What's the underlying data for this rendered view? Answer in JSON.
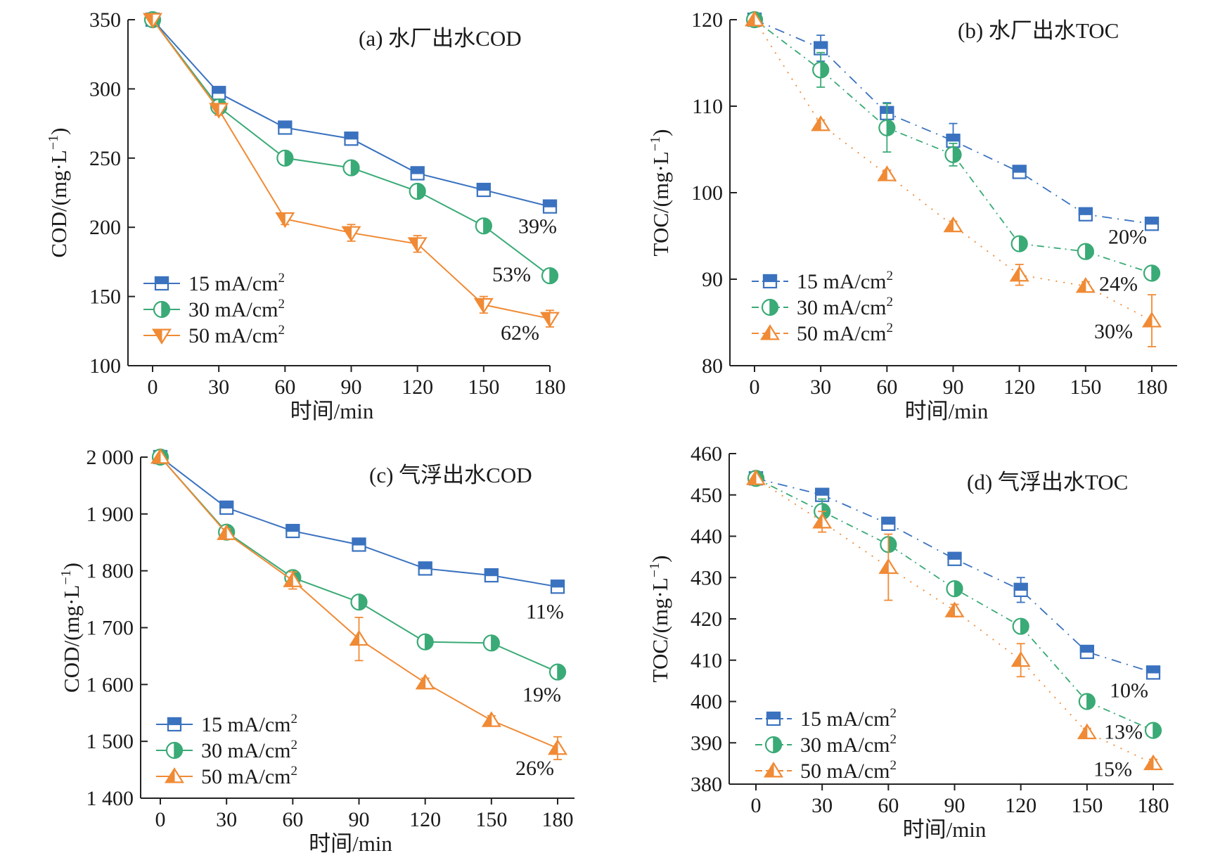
{
  "colors": {
    "15": "#3a72bf",
    "30": "#3aaa76",
    "50": "#f08a35"
  },
  "chart_data": [
    {
      "panel": "a",
      "type": "line",
      "title": "(a)  水厂出水COD",
      "xlabel": "时间/min",
      "ylabel": "COD/(mg·L-1)",
      "ylabel_main": "COD/(mg·L",
      "ylabel_sup": "−1",
      "ylabel_tail": ")",
      "x": [
        0,
        30,
        60,
        90,
        120,
        150,
        180
      ],
      "xticks": [
        "0",
        "30",
        "60",
        "90",
        "120",
        "150",
        "180"
      ],
      "ylim": [
        100,
        350
      ],
      "yticks": [
        100,
        150,
        200,
        250,
        300,
        350
      ],
      "ytick_labels": [
        "100",
        "150",
        "200",
        "250",
        "300",
        "350"
      ],
      "line_style": "solid",
      "series": [
        {
          "name": "15 mA/cm",
          "sup": "2",
          "key": "15",
          "marker": "square",
          "values": [
            350,
            297,
            272,
            264,
            239,
            227,
            215
          ],
          "errors": [
            0,
            4,
            4,
            3,
            3,
            3,
            3
          ]
        },
        {
          "name": "30 mA/cm",
          "sup": "2",
          "key": "30",
          "marker": "circle",
          "values": [
            350,
            287,
            250,
            243,
            226,
            201,
            165
          ],
          "errors": [
            0,
            3,
            3,
            3,
            3,
            3,
            3
          ]
        },
        {
          "name": "50 mA/cm",
          "sup": "2",
          "key": "50",
          "marker": "tri-down",
          "values": [
            350,
            285,
            206,
            196,
            188,
            144,
            134
          ],
          "errors": [
            0,
            4,
            4,
            6,
            6,
            6,
            6
          ]
        }
      ],
      "annotations": [
        {
          "text": "39%",
          "x": 180,
          "y": 215,
          "key": "15"
        },
        {
          "text": "53%",
          "x": 180,
          "y": 165,
          "key": "30"
        },
        {
          "text": "62%",
          "x": 180,
          "y": 134,
          "key": "50"
        }
      ],
      "legend": "bottom-left"
    },
    {
      "panel": "b",
      "type": "line",
      "title": "(b)  水厂出水TOC",
      "xlabel": "时间/min",
      "ylabel": "TOC/(mg·L-1)",
      "ylabel_main": "TOC/(mg·L",
      "ylabel_sup": "−1",
      "ylabel_tail": ")",
      "x": [
        0,
        30,
        60,
        90,
        120,
        150,
        180
      ],
      "xticks": [
        "0",
        "30",
        "60",
        "90",
        "120",
        "150",
        "180"
      ],
      "ylim": [
        80,
        120
      ],
      "yticks": [
        80,
        90,
        100,
        110,
        120
      ],
      "ytick_labels": [
        "80",
        "90",
        "100",
        "110",
        "120"
      ],
      "line_style": "dashdot",
      "series": [
        {
          "name": "15 mA/cm",
          "sup": "2",
          "key": "15",
          "marker": "square",
          "values": [
            120,
            116.7,
            109.2,
            106,
            102.4,
            97.5,
            96.4
          ],
          "errors": [
            0,
            1.5,
            1.2,
            2,
            0.5,
            0.5,
            0.5
          ]
        },
        {
          "name": "30 mA/cm",
          "sup": "2",
          "key": "30",
          "marker": "circle",
          "values": [
            120,
            114.2,
            107.5,
            104.4,
            94.1,
            93.2,
            90.7
          ],
          "errors": [
            0,
            2,
            2.8,
            1.3,
            0.5,
            0.5,
            0.5
          ]
        },
        {
          "name": "50 mA/cm",
          "sup": "2",
          "key": "50",
          "marker": "tri-up",
          "values": [
            120,
            107.9,
            102.1,
            96.2,
            90.5,
            89.2,
            85.2
          ],
          "errors": [
            0,
            0.5,
            0.5,
            0.5,
            1.2,
            0.5,
            3
          ]
        }
      ],
      "annotations": [
        {
          "text": "20%",
          "x": 180,
          "y": 96.4,
          "key": "15"
        },
        {
          "text": "24%",
          "x": 180,
          "y": 90.7,
          "key": "30"
        },
        {
          "text": "30%",
          "x": 180,
          "y": 85.2,
          "key": "50"
        }
      ],
      "legend": "bottom-left"
    },
    {
      "panel": "c",
      "type": "line",
      "title": "(c)  气浮出水COD",
      "xlabel": "时间/min",
      "ylabel": "COD/(mg·L-1)",
      "ylabel_main": "COD/(mg·L",
      "ylabel_sup": "−1",
      "ylabel_tail": ")",
      "x": [
        0,
        30,
        60,
        90,
        120,
        150,
        180
      ],
      "xticks": [
        "0",
        "30",
        "60",
        "90",
        "120",
        "150",
        "180"
      ],
      "ylim": [
        1400,
        2000
      ],
      "yticks": [
        1400,
        1500,
        1600,
        1700,
        1800,
        1900,
        2000
      ],
      "ytick_labels": [
        "1 400",
        "1 500",
        "1 600",
        "1 700",
        "1 800",
        "1 900",
        "2 000"
      ],
      "line_style": "solid",
      "series": [
        {
          "name": "15 mA/cm",
          "sup": "2",
          "key": "15",
          "marker": "square",
          "values": [
            2000,
            1911,
            1870,
            1846,
            1804,
            1792,
            1772
          ],
          "errors": [
            0,
            10,
            8,
            8,
            6,
            6,
            6
          ]
        },
        {
          "name": "30 mA/cm",
          "sup": "2",
          "key": "30",
          "marker": "circle",
          "values": [
            2000,
            1868,
            1788,
            1745,
            1675,
            1673,
            1622
          ],
          "errors": [
            0,
            8,
            10,
            8,
            6,
            6,
            6
          ]
        },
        {
          "name": "50 mA/cm",
          "sup": "2",
          "key": "50",
          "marker": "tri-up",
          "values": [
            2000,
            1866,
            1783,
            1680,
            1603,
            1537,
            1488
          ],
          "errors": [
            0,
            8,
            15,
            38,
            8,
            8,
            20
          ]
        }
      ],
      "annotations": [
        {
          "text": "11%",
          "x": 180,
          "y": 1772,
          "key": "15"
        },
        {
          "text": "19%",
          "x": 180,
          "y": 1622,
          "key": "30"
        },
        {
          "text": "26%",
          "x": 180,
          "y": 1488,
          "key": "50"
        }
      ],
      "legend": "bottom-left"
    },
    {
      "panel": "d",
      "type": "line",
      "title": "(d)  气浮出水TOC",
      "xlabel": "时间/min",
      "ylabel": "TOC/(mg·L-1)",
      "ylabel_main": "TOC/(mg·L",
      "ylabel_sup": "−1",
      "ylabel_tail": ")",
      "x": [
        0,
        30,
        60,
        90,
        120,
        150,
        180
      ],
      "xticks": [
        "0",
        "30",
        "60",
        "90",
        "120",
        "150",
        "180"
      ],
      "ylim": [
        380,
        460
      ],
      "yticks": [
        380,
        390,
        400,
        410,
        420,
        430,
        440,
        450,
        460
      ],
      "ytick_labels": [
        "380",
        "390",
        "400",
        "410",
        "420",
        "430",
        "440",
        "450",
        "460"
      ],
      "line_style": "dashdot",
      "series": [
        {
          "name": "15 mA/cm",
          "sup": "2",
          "key": "15",
          "marker": "square",
          "values": [
            454,
            450,
            443,
            434.5,
            427,
            412,
            407
          ],
          "errors": [
            0,
            1,
            1,
            1.5,
            3,
            1,
            1
          ]
        },
        {
          "name": "30 mA/cm",
          "sup": "2",
          "key": "30",
          "marker": "circle",
          "values": [
            454,
            446,
            438,
            427.3,
            418.2,
            400,
            393
          ],
          "errors": [
            0,
            3,
            1.5,
            1,
            1,
            1,
            1
          ]
        },
        {
          "name": "50 mA/cm",
          "sup": "2",
          "key": "50",
          "marker": "tri-up",
          "values": [
            454,
            443.5,
            432.5,
            422,
            410,
            392.5,
            385
          ],
          "errors": [
            0,
            2.5,
            8,
            1.5,
            4,
            1,
            1
          ]
        }
      ],
      "annotations": [
        {
          "text": "10%",
          "x": 180,
          "y": 407,
          "key": "15"
        },
        {
          "text": "13%",
          "x": 180,
          "y": 393,
          "key": "30"
        },
        {
          "text": "15%",
          "x": 180,
          "y": 385,
          "key": "50"
        }
      ],
      "legend": "bottom-left"
    }
  ]
}
